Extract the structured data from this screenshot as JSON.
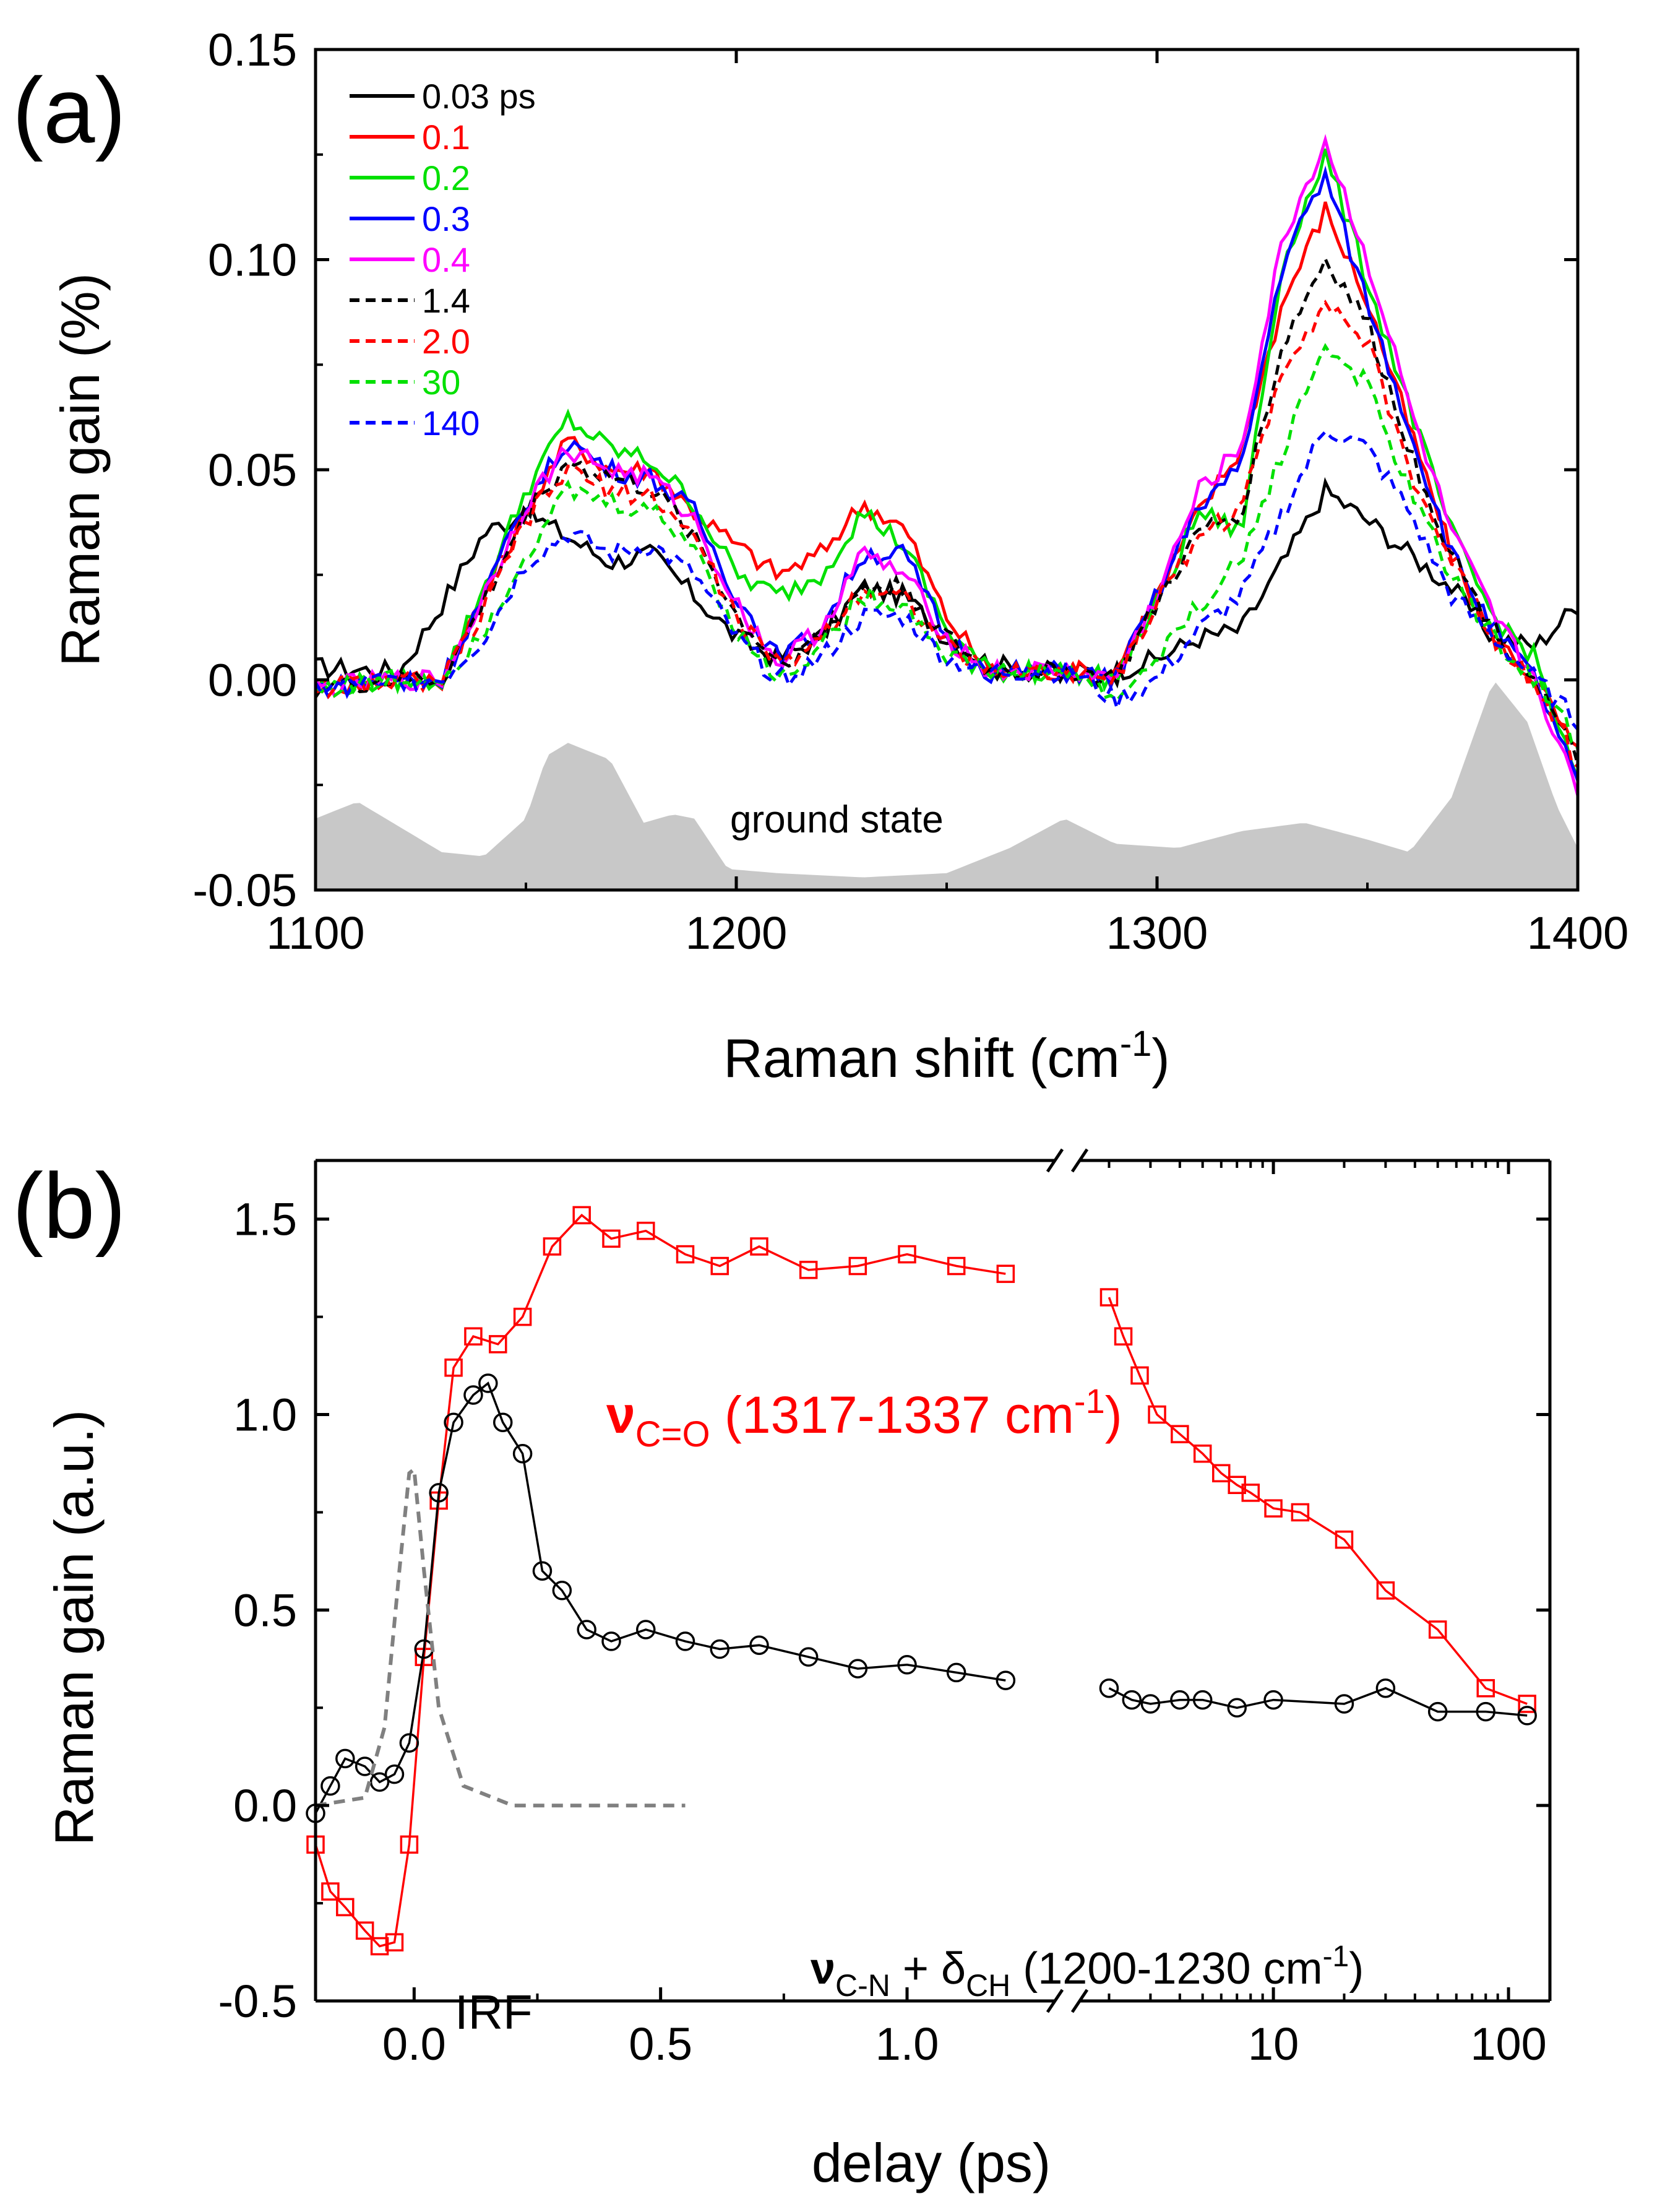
{
  "colors": {
    "black": "#000000",
    "red": "#ff0000",
    "green": "#00e000",
    "blue": "#0000ff",
    "magenta": "#ff00ff",
    "gray_fill": "#c8c8c8",
    "irf_gray": "#808080"
  },
  "chart_data": [
    {
      "panel_label": "(a)",
      "type": "line",
      "xlabel": "Raman shift (cm",
      "xlabel_sup": "-1",
      "xlabel_end": ")",
      "ylabel": "Raman gain (%)",
      "xlim": [
        1100,
        1400
      ],
      "ylim": [
        -0.05,
        0.15
      ],
      "xticks": [
        1100,
        1200,
        1300,
        1400
      ],
      "xtick_labels": [
        "1100",
        "1200",
        "1300",
        "1400"
      ],
      "yticks": [
        -0.05,
        0.0,
        0.05,
        0.1,
        0.15
      ],
      "ytick_labels": [
        "-0.05",
        "0.00",
        "0.05",
        "0.10",
        "0.15"
      ],
      "legend_position": "top-left",
      "annotation": "ground state",
      "ground_state": {
        "x": [
          1100,
          1110,
          1120,
          1130,
          1140,
          1150,
          1155,
          1160,
          1170,
          1178,
          1185,
          1190,
          1198,
          1210,
          1230,
          1250,
          1265,
          1278,
          1290,
          1305,
          1320,
          1335,
          1350,
          1360,
          1370,
          1380,
          1388,
          1395,
          1400
        ],
        "y": [
          -0.033,
          -0.029,
          -0.035,
          -0.041,
          -0.042,
          -0.033,
          -0.018,
          -0.015,
          -0.019,
          -0.034,
          -0.032,
          -0.033,
          -0.045,
          -0.046,
          -0.047,
          -0.046,
          -0.04,
          -0.033,
          -0.039,
          -0.04,
          -0.036,
          -0.034,
          -0.038,
          -0.041,
          -0.028,
          0.0,
          -0.01,
          -0.03,
          -0.04
        ]
      },
      "series": [
        {
          "name": "0.03 ps",
          "color": "#000000",
          "dash": false,
          "x": [
            1100,
            1120,
            1130,
            1140,
            1150,
            1160,
            1170,
            1180,
            1190,
            1200,
            1210,
            1220,
            1230,
            1240,
            1250,
            1260,
            1270,
            1280,
            1290,
            1300,
            1310,
            1320,
            1330,
            1340,
            1350,
            1360,
            1370,
            1380,
            1390,
            1400
          ],
          "y": [
            0.003,
            0.002,
            0.018,
            0.035,
            0.04,
            0.034,
            0.028,
            0.03,
            0.02,
            0.01,
            0.005,
            0.01,
            0.022,
            0.02,
            0.01,
            0.004,
            0.002,
            0.002,
            0.002,
            0.005,
            0.01,
            0.012,
            0.028,
            0.045,
            0.038,
            0.03,
            0.022,
            0.01,
            0.008,
            0.018
          ]
        },
        {
          "name": "0.1",
          "color": "#ff0000",
          "dash": false,
          "x": [
            1100,
            1120,
            1130,
            1140,
            1150,
            1160,
            1170,
            1180,
            1190,
            1200,
            1210,
            1220,
            1230,
            1240,
            1250,
            1260,
            1270,
            1280,
            1290,
            1300,
            1310,
            1320,
            1330,
            1340,
            1350,
            1360,
            1370,
            1380,
            1390,
            1400
          ],
          "y": [
            -0.002,
            0.0,
            0.0,
            0.02,
            0.04,
            0.057,
            0.05,
            0.05,
            0.04,
            0.032,
            0.025,
            0.03,
            0.042,
            0.036,
            0.015,
            0.002,
            0.002,
            0.002,
            0.002,
            0.02,
            0.04,
            0.055,
            0.09,
            0.112,
            0.09,
            0.06,
            0.03,
            0.01,
            0.0,
            -0.018
          ]
        },
        {
          "name": "0.2",
          "color": "#00e000",
          "dash": false,
          "x": [
            1100,
            1120,
            1130,
            1140,
            1150,
            1160,
            1170,
            1180,
            1190,
            1200,
            1210,
            1220,
            1230,
            1240,
            1250,
            1260,
            1270,
            1280,
            1290,
            1300,
            1310,
            1320,
            1330,
            1340,
            1350,
            1360,
            1370,
            1380,
            1390,
            1400
          ],
          "y": [
            -0.002,
            0.0,
            0.0,
            0.022,
            0.045,
            0.062,
            0.055,
            0.052,
            0.042,
            0.025,
            0.02,
            0.025,
            0.04,
            0.032,
            0.012,
            0.002,
            0.002,
            0.002,
            0.0,
            0.018,
            0.04,
            0.035,
            0.1,
            0.125,
            0.095,
            0.065,
            0.035,
            0.015,
            0.005,
            -0.025
          ]
        },
        {
          "name": "0.3",
          "color": "#0000ff",
          "dash": false,
          "x": [
            1100,
            1120,
            1130,
            1140,
            1150,
            1160,
            1170,
            1180,
            1190,
            1200,
            1210,
            1220,
            1230,
            1240,
            1250,
            1260,
            1270,
            1280,
            1290,
            1300,
            1310,
            1320,
            1330,
            1340,
            1350,
            1360,
            1370,
            1380,
            1390,
            1400
          ],
          "y": [
            -0.002,
            0.0,
            0.0,
            0.02,
            0.042,
            0.057,
            0.05,
            0.048,
            0.04,
            0.02,
            0.005,
            0.012,
            0.03,
            0.03,
            0.01,
            0.002,
            0.002,
            0.002,
            0.0,
            0.02,
            0.042,
            0.05,
            0.1,
            0.12,
            0.09,
            0.06,
            0.03,
            0.012,
            0.0,
            -0.025
          ]
        },
        {
          "name": "0.4",
          "color": "#ff00ff",
          "dash": false,
          "x": [
            1100,
            1120,
            1130,
            1140,
            1150,
            1160,
            1170,
            1180,
            1190,
            1200,
            1210,
            1220,
            1230,
            1240,
            1250,
            1260,
            1270,
            1280,
            1290,
            1300,
            1310,
            1320,
            1330,
            1340,
            1350,
            1360,
            1370,
            1380,
            1390,
            1400
          ],
          "y": [
            -0.002,
            0.0,
            0.0,
            0.02,
            0.042,
            0.055,
            0.05,
            0.048,
            0.038,
            0.018,
            0.004,
            0.012,
            0.03,
            0.025,
            0.01,
            0.002,
            0.002,
            0.002,
            0.0,
            0.02,
            0.045,
            0.055,
            0.105,
            0.128,
            0.1,
            0.065,
            0.035,
            0.015,
            0.0,
            -0.028
          ]
        },
        {
          "name": "1.4",
          "color": "#000000",
          "dash": true,
          "x": [
            1100,
            1120,
            1130,
            1140,
            1150,
            1160,
            1170,
            1180,
            1190,
            1200,
            1210,
            1220,
            1230,
            1240,
            1250,
            1260,
            1270,
            1280,
            1290,
            1300,
            1310,
            1320,
            1330,
            1340,
            1350,
            1360,
            1370,
            1380,
            1390,
            1400
          ],
          "y": [
            -0.002,
            0.0,
            0.0,
            0.018,
            0.04,
            0.052,
            0.048,
            0.045,
            0.035,
            0.015,
            0.004,
            0.01,
            0.022,
            0.022,
            0.01,
            0.002,
            0.002,
            0.002,
            0.0,
            0.018,
            0.035,
            0.04,
            0.08,
            0.1,
            0.085,
            0.055,
            0.03,
            0.012,
            0.0,
            -0.02
          ]
        },
        {
          "name": "2.0",
          "color": "#ff0000",
          "dash": true,
          "x": [
            1100,
            1120,
            1130,
            1140,
            1150,
            1160,
            1170,
            1180,
            1190,
            1200,
            1210,
            1220,
            1230,
            1240,
            1250,
            1260,
            1270,
            1280,
            1290,
            1300,
            1310,
            1320,
            1330,
            1340,
            1350,
            1360,
            1370,
            1380,
            1390,
            1400
          ],
          "y": [
            -0.002,
            0.0,
            0.0,
            0.016,
            0.038,
            0.05,
            0.045,
            0.044,
            0.034,
            0.015,
            0.003,
            0.01,
            0.022,
            0.02,
            0.008,
            0.002,
            0.002,
            0.002,
            0.0,
            0.018,
            0.035,
            0.04,
            0.075,
            0.09,
            0.08,
            0.05,
            0.028,
            0.01,
            0.0,
            -0.02
          ]
        },
        {
          "name": "30",
          "color": "#00e000",
          "dash": true,
          "x": [
            1100,
            1120,
            1130,
            1140,
            1150,
            1160,
            1170,
            1180,
            1190,
            1200,
            1210,
            1220,
            1230,
            1240,
            1250,
            1260,
            1270,
            1280,
            1290,
            1300,
            1310,
            1320,
            1330,
            1340,
            1350,
            1360,
            1370,
            1380,
            1390,
            1400
          ],
          "y": [
            -0.002,
            0.0,
            0.0,
            0.012,
            0.03,
            0.045,
            0.042,
            0.04,
            0.032,
            0.012,
            0.0,
            0.008,
            0.02,
            0.018,
            0.006,
            0.002,
            0.002,
            0.002,
            -0.005,
            0.005,
            0.018,
            0.028,
            0.055,
            0.08,
            0.07,
            0.045,
            0.025,
            0.01,
            0.0,
            -0.015
          ]
        },
        {
          "name": "140",
          "color": "#0000ff",
          "dash": true,
          "x": [
            1100,
            1120,
            1130,
            1140,
            1150,
            1160,
            1170,
            1180,
            1190,
            1200,
            1210,
            1220,
            1230,
            1240,
            1250,
            1260,
            1270,
            1280,
            1290,
            1300,
            1310,
            1320,
            1330,
            1340,
            1350,
            1360,
            1370,
            1380,
            1390,
            1400
          ],
          "y": [
            -0.002,
            0.0,
            0.0,
            0.01,
            0.028,
            0.035,
            0.03,
            0.032,
            0.025,
            0.01,
            0.0,
            0.005,
            0.015,
            0.015,
            0.005,
            0.002,
            0.002,
            0.002,
            -0.005,
            0.0,
            0.012,
            0.02,
            0.04,
            0.06,
            0.055,
            0.04,
            0.02,
            0.01,
            0.0,
            -0.01
          ]
        }
      ]
    },
    {
      "panel_label": "(b)",
      "type": "scatter",
      "xlabel": "delay (ps)",
      "ylabel": "Raman gain (a.u.)",
      "ylim": [
        -0.5,
        1.65
      ],
      "yticks": [
        -0.5,
        0.0,
        0.5,
        1.0,
        1.5
      ],
      "ytick_labels": [
        "-0.5",
        "0.0",
        "0.5",
        "1.0",
        "1.5"
      ],
      "x_axis_break": true,
      "linear_segment": {
        "xlim": [
          -0.2,
          1.3
        ],
        "xticks": [
          0.0,
          0.5,
          1.0
        ],
        "xtick_labels": [
          "0.0",
          "0.5",
          "1.0"
        ]
      },
      "log_segment": {
        "xlim": [
          1.5,
          150
        ],
        "xticks": [
          10,
          100
        ],
        "xtick_labels": [
          "10",
          "100"
        ]
      },
      "annotations": {
        "irf": "IRF",
        "co_nu": "ν",
        "co_sub": "C=O",
        "co_rest": " (1317-1337 cm",
        "co_sup": "-1",
        "co_end": ")",
        "cn_nu": "ν",
        "cn_sub1": "C-N",
        "cn_mid": " + δ",
        "cn_sub2": "CH",
        "cn_rest": " (1200-1230 cm",
        "cn_sup": "-1",
        "cn_end": ")"
      },
      "series": [
        {
          "name": "νC=O (1317-1337 cm-1)",
          "color": "#ff0000",
          "marker": "square",
          "x": [
            -0.2,
            -0.17,
            -0.14,
            -0.1,
            -0.07,
            -0.04,
            -0.01,
            0.02,
            0.05,
            0.08,
            0.12,
            0.17,
            0.22,
            0.28,
            0.34,
            0.4,
            0.47,
            0.55,
            0.62,
            0.7,
            0.8,
            0.9,
            1.0,
            1.1,
            1.2,
            2.0,
            2.3,
            2.7,
            3.2,
            4,
            5,
            6,
            7,
            8,
            10,
            13,
            20,
            30,
            50,
            80,
            120
          ],
          "y": [
            -0.1,
            -0.22,
            -0.26,
            -0.32,
            -0.36,
            -0.35,
            -0.1,
            0.38,
            0.78,
            1.12,
            1.2,
            1.18,
            1.25,
            1.43,
            1.51,
            1.45,
            1.47,
            1.41,
            1.38,
            1.43,
            1.37,
            1.38,
            1.41,
            1.38,
            1.36,
            1.3,
            1.2,
            1.1,
            1.0,
            0.95,
            0.9,
            0.85,
            0.82,
            0.8,
            0.76,
            0.75,
            0.68,
            0.55,
            0.45,
            0.3,
            0.26
          ]
        },
        {
          "name": "νC-N + δCH (1200-1230 cm-1)",
          "color": "#000000",
          "marker": "circle",
          "x": [
            -0.2,
            -0.17,
            -0.14,
            -0.1,
            -0.07,
            -0.04,
            -0.01,
            0.02,
            0.05,
            0.08,
            0.12,
            0.15,
            0.18,
            0.22,
            0.26,
            0.3,
            0.35,
            0.4,
            0.47,
            0.55,
            0.62,
            0.7,
            0.8,
            0.9,
            1.0,
            1.1,
            1.2,
            2.0,
            2.5,
            3,
            4,
            5,
            7,
            10,
            20,
            30,
            50,
            80,
            120
          ],
          "y": [
            -0.02,
            0.05,
            0.12,
            0.1,
            0.06,
            0.08,
            0.16,
            0.4,
            0.8,
            0.98,
            1.05,
            1.08,
            0.98,
            0.9,
            0.6,
            0.55,
            0.45,
            0.42,
            0.45,
            0.42,
            0.4,
            0.41,
            0.38,
            0.35,
            0.36,
            0.34,
            0.32,
            0.3,
            0.27,
            0.26,
            0.27,
            0.27,
            0.25,
            0.27,
            0.26,
            0.3,
            0.24,
            0.24,
            0.23
          ]
        },
        {
          "name": "IRF",
          "color": "#808080",
          "marker": "none",
          "dash": true,
          "x": [
            -0.2,
            -0.1,
            -0.06,
            -0.03,
            -0.01,
            0.0,
            0.02,
            0.05,
            0.1,
            0.2,
            0.35,
            0.55
          ],
          "y": [
            0.0,
            0.02,
            0.2,
            0.6,
            0.85,
            0.86,
            0.6,
            0.25,
            0.05,
            0.0,
            0.0,
            0.0
          ]
        }
      ]
    }
  ]
}
